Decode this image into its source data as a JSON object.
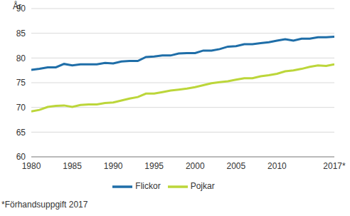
{
  "chart_data": {
    "type": "line",
    "ylabel": "År",
    "annotations": [
      "*Förhandsuppgift 2017"
    ],
    "x": [
      1980,
      1981,
      1982,
      1983,
      1984,
      1985,
      1986,
      1987,
      1988,
      1989,
      1990,
      1991,
      1992,
      1993,
      1994,
      1995,
      1996,
      1997,
      1998,
      1999,
      2000,
      2001,
      2002,
      2003,
      2004,
      2005,
      2006,
      2007,
      2008,
      2009,
      2010,
      2011,
      2012,
      2013,
      2014,
      2015,
      2016,
      2017
    ],
    "series": [
      {
        "name": "Flickor",
        "color": "#1f6ea8",
        "values": [
          77.6,
          77.8,
          78.1,
          78.1,
          78.8,
          78.5,
          78.7,
          78.7,
          78.7,
          79.0,
          78.9,
          79.3,
          79.4,
          79.4,
          80.2,
          80.3,
          80.5,
          80.5,
          80.9,
          81.0,
          81.0,
          81.5,
          81.5,
          81.8,
          82.3,
          82.4,
          82.8,
          82.8,
          83.0,
          83.2,
          83.5,
          83.8,
          83.5,
          83.9,
          83.9,
          84.2,
          84.2,
          84.3
        ]
      },
      {
        "name": "Pojkar",
        "color": "#bcd63a",
        "values": [
          69.2,
          69.5,
          70.1,
          70.3,
          70.4,
          70.1,
          70.5,
          70.6,
          70.6,
          70.9,
          71.0,
          71.4,
          71.8,
          72.1,
          72.8,
          72.8,
          73.1,
          73.4,
          73.6,
          73.8,
          74.1,
          74.5,
          74.9,
          75.1,
          75.3,
          75.6,
          75.9,
          75.9,
          76.3,
          76.5,
          76.8,
          77.3,
          77.5,
          77.8,
          78.2,
          78.5,
          78.4,
          78.7
        ]
      }
    ],
    "xlim": [
      1980,
      2017
    ],
    "xticks": [
      1980,
      1985,
      1990,
      1995,
      2000,
      2005,
      2010,
      {
        "value": 2017,
        "label": "2017*"
      }
    ],
    "ylim": [
      60,
      90
    ],
    "yticks": [
      60,
      65,
      70,
      75,
      80,
      85,
      90
    ],
    "grid": true,
    "legend": "bottom"
  }
}
